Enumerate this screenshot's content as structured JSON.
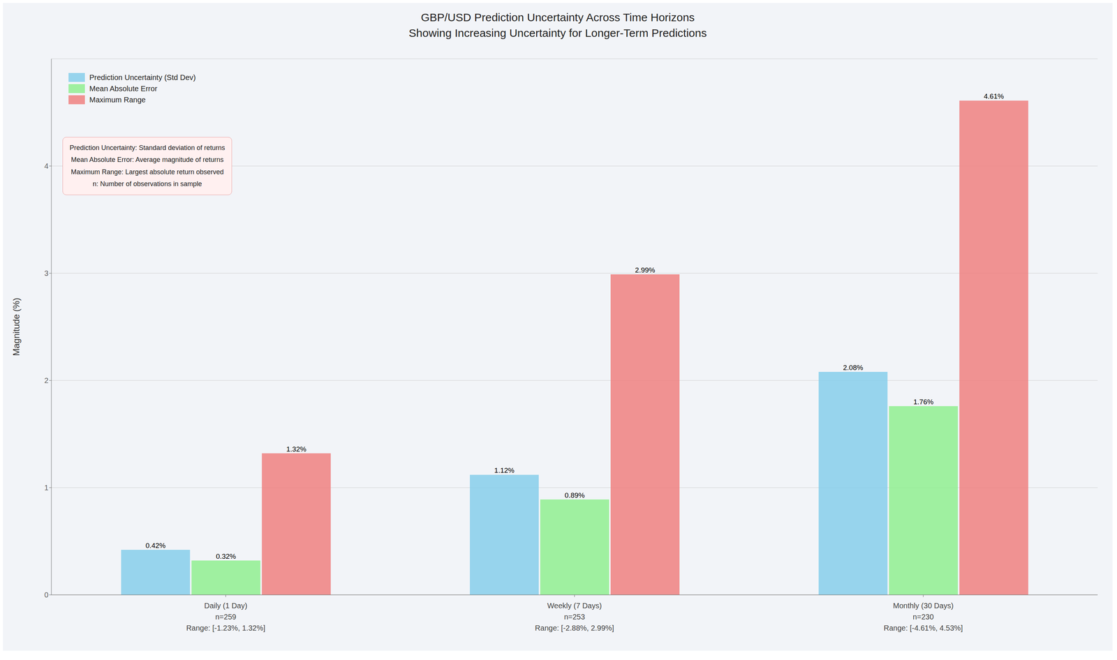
{
  "chart_data": {
    "type": "bar",
    "title": "GBP/USD Prediction Uncertainty Across Time Horizons",
    "subtitle": "Showing Increasing Uncertainty for Longer-Term Predictions",
    "categories": [
      "Daily (1 Day)\nn=259\nRange: [-1.23%, 1.32%]",
      "Weekly (7 Days)\nn=253\nRange: [-2.88%, 2.99%]",
      "Monthly (30 Days)\nn=230\nRange: [-4.61%, 4.53%]"
    ],
    "series": [
      {
        "name": "Prediction Uncertainty (Std Dev)",
        "color": "#87CEEB",
        "values": [
          0.42,
          1.12,
          2.08
        ],
        "value_labels": [
          "0.42%",
          "1.12%",
          "2.08%"
        ]
      },
      {
        "name": "Mean Absolute Error",
        "color": "#90EE90",
        "values": [
          0.32,
          0.89,
          1.76
        ],
        "value_labels": [
          "0.32%",
          "0.89%",
          "1.76%"
        ]
      },
      {
        "name": "Maximum Range",
        "color": "#F08080",
        "values": [
          1.32,
          2.99,
          4.61
        ],
        "value_labels": [
          "1.32%",
          "2.99%",
          "4.61%"
        ]
      }
    ],
    "ylabel": "Magnitude (%)",
    "ylim": [
      0,
      5.0
    ],
    "yticks": [
      0,
      1,
      2,
      3,
      4
    ],
    "grid": true,
    "legend": "upper left",
    "data_labels": true,
    "annotations": [
      "Prediction Uncertainty: Standard deviation of returns",
      "Mean Absolute Error: Average magnitude of returns",
      "Maximum Range: Largest absolute return observed",
      "n: Number of observations in sample"
    ]
  }
}
